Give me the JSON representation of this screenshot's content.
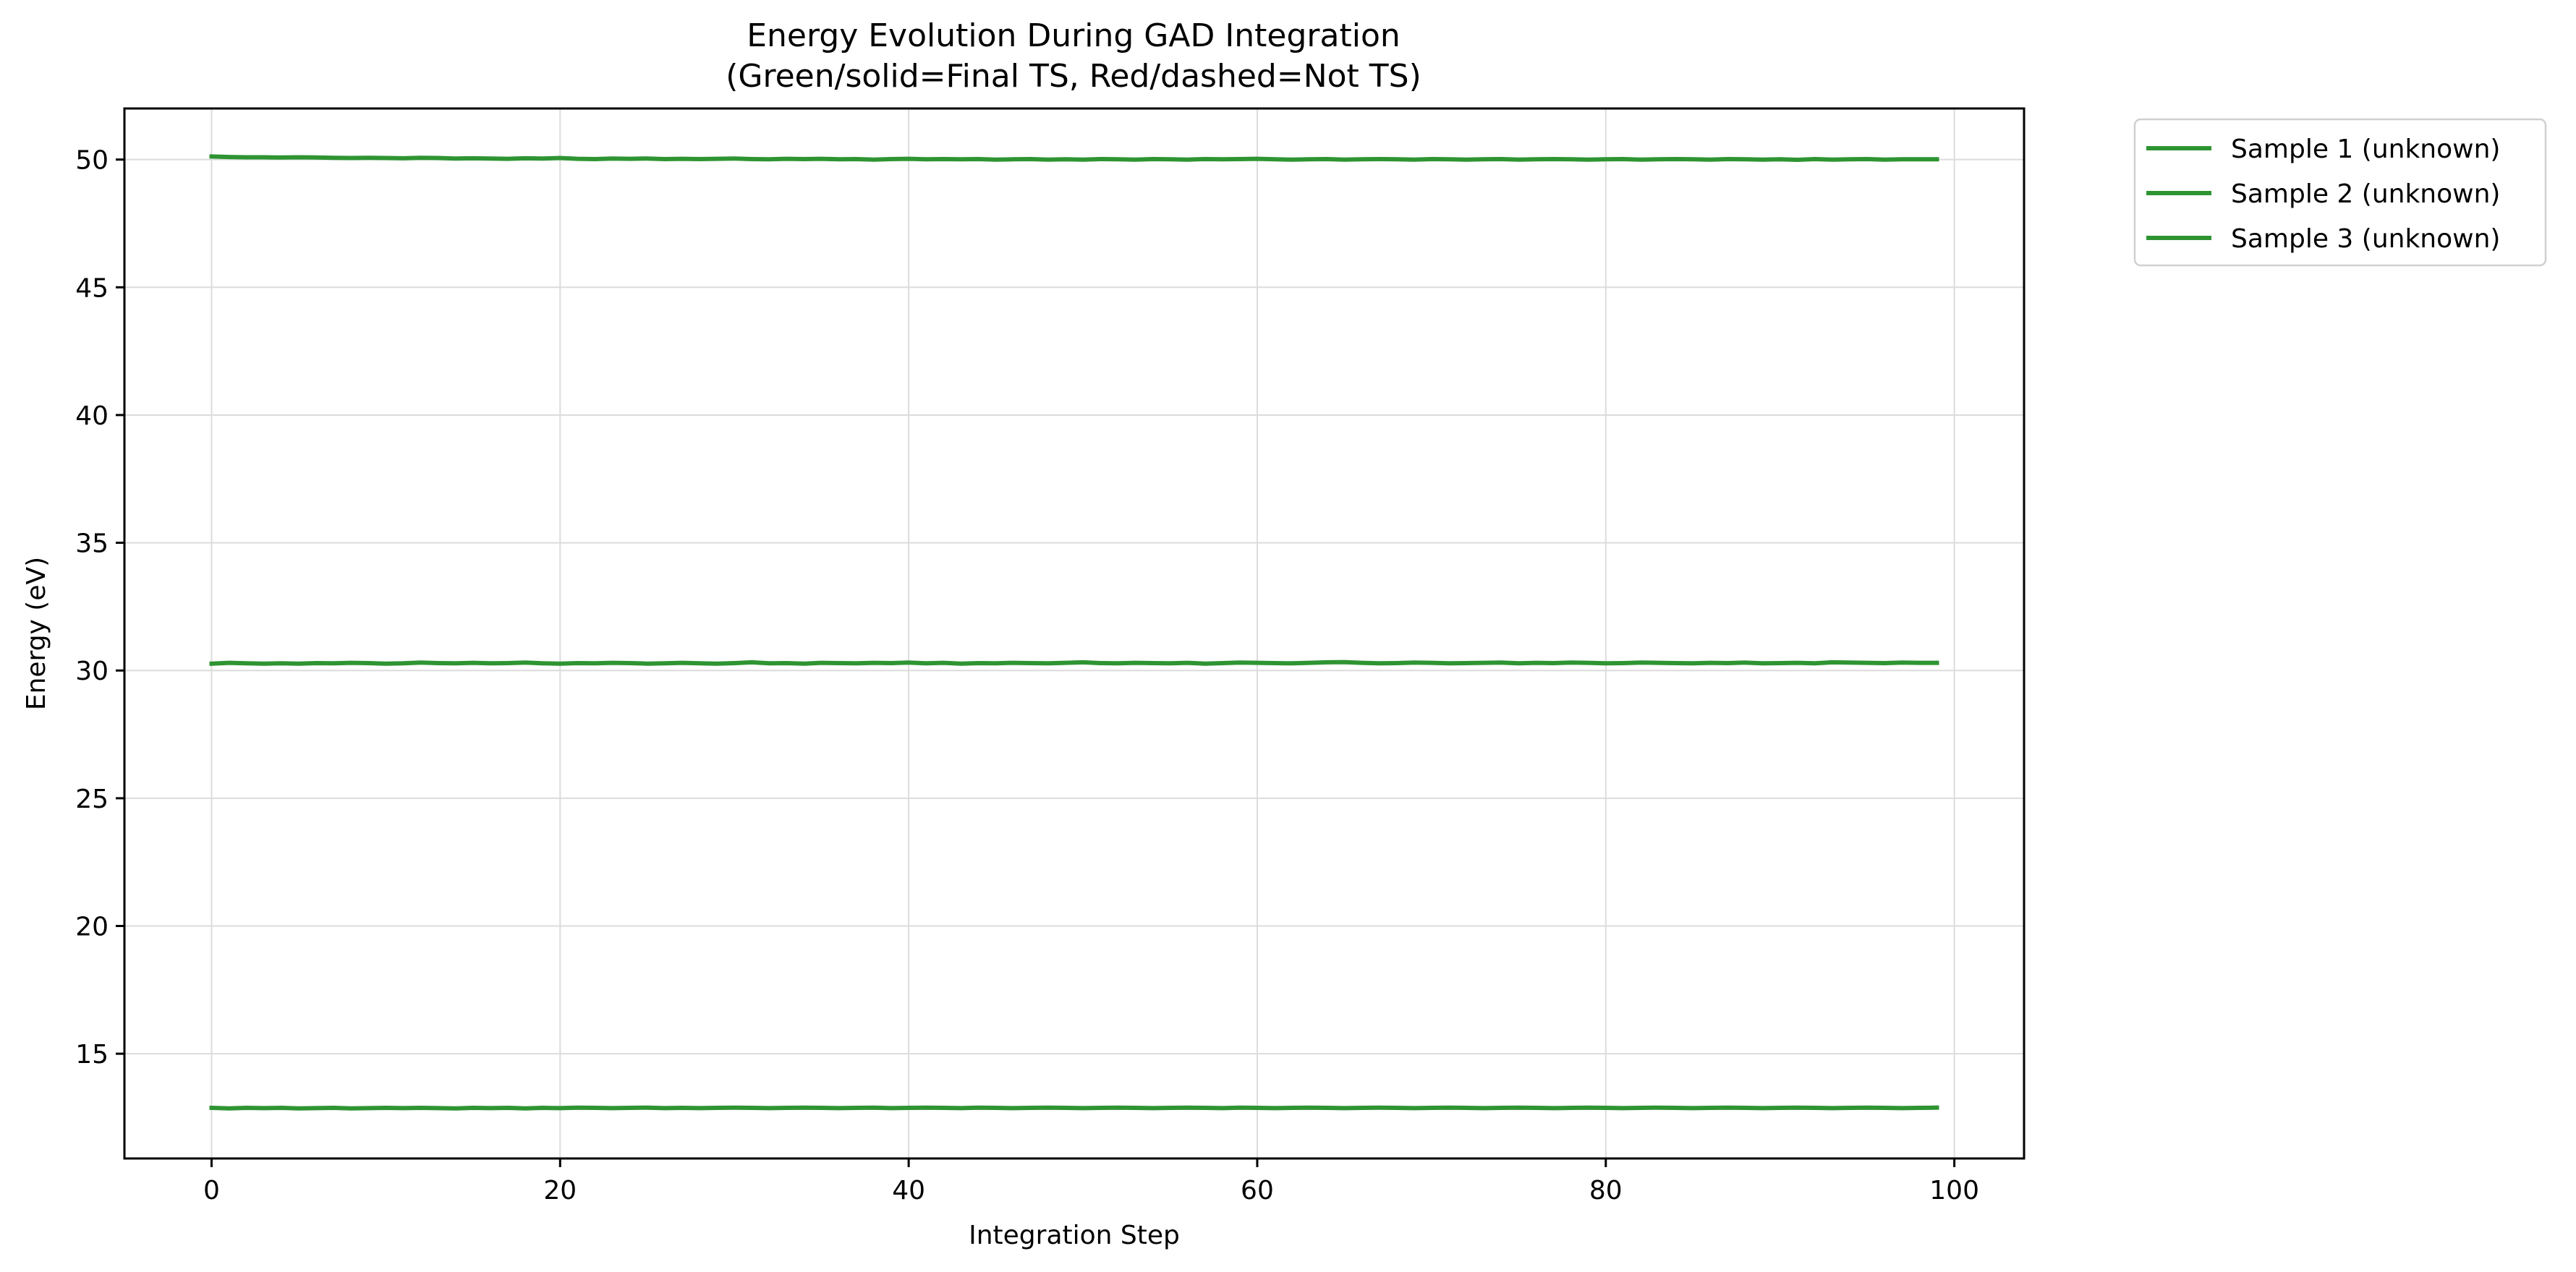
{
  "chart_data": {
    "type": "line",
    "title_line1": "Energy Evolution During GAD Integration",
    "title_line2": "(Green/solid=Final TS, Red/dashed=Not TS)",
    "xlabel": "Integration Step",
    "ylabel": "Energy (eV)",
    "xlim": [
      -5,
      104
    ],
    "ylim": [
      10.9,
      52.0
    ],
    "x_ticks": [
      0,
      20,
      40,
      60,
      80,
      100
    ],
    "y_ticks": [
      15,
      20,
      25,
      30,
      35,
      40,
      45,
      50
    ],
    "grid": true,
    "legend_position": "outside-top-right",
    "series_color": "#2e9432",
    "x_range": [
      0,
      99
    ],
    "series": [
      {
        "name": "Sample 1 (unknown)",
        "style": "solid",
        "values": [
          50.12,
          50.1,
          50.09,
          50.09,
          50.08,
          50.09,
          50.08,
          50.07,
          50.06,
          50.07,
          50.06,
          50.05,
          50.07,
          50.06,
          50.04,
          50.05,
          50.04,
          50.03,
          50.05,
          50.04,
          50.06,
          50.03,
          50.02,
          50.04,
          50.03,
          50.04,
          50.02,
          50.03,
          50.02,
          50.03,
          50.04,
          50.02,
          50.01,
          50.03,
          50.02,
          50.03,
          50.01,
          50.02,
          50.0,
          50.02,
          50.03,
          50.01,
          50.02,
          50.01,
          50.02,
          50.0,
          50.01,
          50.02,
          50.0,
          50.01,
          50.0,
          50.02,
          50.01,
          50.0,
          50.02,
          50.01,
          50.0,
          50.02,
          50.01,
          50.02,
          50.03,
          50.01,
          50.0,
          50.01,
          50.02,
          50.0,
          50.01,
          50.02,
          50.01,
          50.0,
          50.02,
          50.01,
          50.0,
          50.01,
          50.02,
          50.0,
          50.01,
          50.02,
          50.01,
          50.0,
          50.01,
          50.02,
          50.0,
          50.01,
          50.02,
          50.01,
          50.0,
          50.02,
          50.01,
          50.0,
          50.01,
          49.99,
          50.02,
          50.0,
          50.01,
          50.02,
          50.0,
          50.01,
          50.01,
          50.01
        ]
      },
      {
        "name": "Sample 2 (unknown)",
        "style": "solid",
        "values": [
          30.27,
          30.3,
          30.28,
          30.27,
          30.28,
          30.27,
          30.29,
          30.28,
          30.3,
          30.29,
          30.27,
          30.28,
          30.31,
          30.29,
          30.28,
          30.3,
          30.28,
          30.29,
          30.31,
          30.28,
          30.27,
          30.29,
          30.28,
          30.3,
          30.29,
          30.27,
          30.28,
          30.3,
          30.28,
          30.27,
          30.29,
          30.32,
          30.28,
          30.29,
          30.27,
          30.3,
          30.29,
          30.28,
          30.3,
          30.29,
          30.31,
          30.28,
          30.3,
          30.27,
          30.29,
          30.28,
          30.3,
          30.29,
          30.28,
          30.3,
          30.32,
          30.29,
          30.28,
          30.3,
          30.29,
          30.28,
          30.3,
          30.27,
          30.29,
          30.31,
          30.3,
          30.29,
          30.28,
          30.3,
          30.32,
          30.33,
          30.3,
          30.28,
          30.29,
          30.31,
          30.3,
          30.28,
          30.29,
          30.3,
          30.31,
          30.28,
          30.3,
          30.29,
          30.31,
          30.3,
          30.28,
          30.29,
          30.31,
          30.3,
          30.29,
          30.28,
          30.3,
          30.29,
          30.31,
          30.28,
          30.29,
          30.3,
          30.28,
          30.32,
          30.31,
          30.3,
          30.29,
          30.31,
          30.3,
          30.3
        ]
      },
      {
        "name": "Sample 3 (unknown)",
        "style": "solid",
        "values": [
          12.88,
          12.86,
          12.88,
          12.87,
          12.88,
          12.86,
          12.87,
          12.88,
          12.86,
          12.87,
          12.88,
          12.87,
          12.88,
          12.87,
          12.86,
          12.88,
          12.87,
          12.88,
          12.86,
          12.88,
          12.87,
          12.89,
          12.88,
          12.87,
          12.88,
          12.89,
          12.87,
          12.88,
          12.87,
          12.88,
          12.89,
          12.88,
          12.87,
          12.88,
          12.89,
          12.88,
          12.87,
          12.88,
          12.89,
          12.87,
          12.88,
          12.89,
          12.88,
          12.87,
          12.89,
          12.88,
          12.87,
          12.88,
          12.89,
          12.88,
          12.87,
          12.88,
          12.89,
          12.88,
          12.87,
          12.88,
          12.89,
          12.88,
          12.87,
          12.89,
          12.88,
          12.87,
          12.88,
          12.89,
          12.88,
          12.87,
          12.88,
          12.89,
          12.88,
          12.87,
          12.88,
          12.89,
          12.88,
          12.87,
          12.88,
          12.89,
          12.88,
          12.87,
          12.88,
          12.89,
          12.88,
          12.87,
          12.88,
          12.89,
          12.88,
          12.87,
          12.88,
          12.89,
          12.88,
          12.87,
          12.88,
          12.89,
          12.88,
          12.87,
          12.88,
          12.89,
          12.88,
          12.87,
          12.88,
          12.89
        ]
      }
    ]
  }
}
